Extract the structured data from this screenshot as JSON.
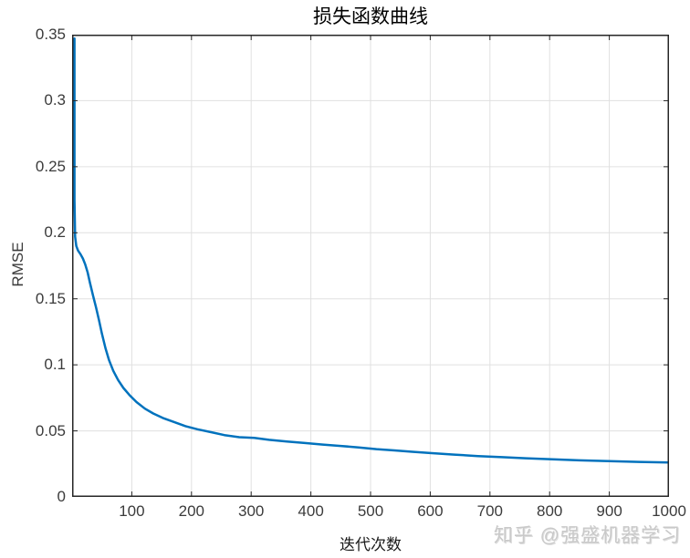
{
  "page": {
    "background": "#ffffff"
  },
  "watermark": {
    "text": "知乎 @强盛机器学习",
    "color": "#c9c9c9"
  },
  "chart_data": {
    "type": "line",
    "title": "损失函数曲线",
    "xlabel": "迭代次数",
    "ylabel": "RMSE",
    "xlim": [
      0,
      1000
    ],
    "ylim": [
      0,
      0.35
    ],
    "xticks": [
      100,
      200,
      300,
      400,
      500,
      600,
      700,
      800,
      900,
      1000
    ],
    "xtick_labels": [
      "100",
      "200",
      "300",
      "400",
      "500",
      "600",
      "700",
      "800",
      "900",
      "1000"
    ],
    "yticks": [
      0,
      0.05,
      0.1,
      0.15,
      0.2,
      0.25,
      0.3,
      0.35
    ],
    "ytick_labels": [
      "0",
      "0.05",
      "0.1",
      "0.15",
      "0.2",
      "0.25",
      "0.3",
      "0.35"
    ],
    "grid": true,
    "grid_color": "#e0e0e0",
    "axis_color": "#262626",
    "line_color": "#0072BD",
    "line_width": 2.5,
    "legend": "none",
    "series": [
      {
        "name": "RMSE",
        "points": [
          [
            4,
            0.347
          ],
          [
            4,
            0.28
          ],
          [
            4,
            0.225
          ],
          [
            5,
            0.197
          ],
          [
            7,
            0.19
          ],
          [
            10,
            0.1865
          ],
          [
            14,
            0.1838
          ],
          [
            18,
            0.1805
          ],
          [
            22,
            0.176
          ],
          [
            26,
            0.17
          ],
          [
            30,
            0.162
          ],
          [
            35,
            0.1525
          ],
          [
            40,
            0.1435
          ],
          [
            45,
            0.134
          ],
          [
            50,
            0.1235
          ],
          [
            56,
            0.1125
          ],
          [
            62,
            0.1035
          ],
          [
            69,
            0.0955
          ],
          [
            77,
            0.0885
          ],
          [
            86,
            0.0825
          ],
          [
            96,
            0.0772
          ],
          [
            108,
            0.0718
          ],
          [
            122,
            0.0668
          ],
          [
            136,
            0.0632
          ],
          [
            152,
            0.0598
          ],
          [
            170,
            0.0568
          ],
          [
            190,
            0.0536
          ],
          [
            210,
            0.0512
          ],
          [
            232,
            0.0491
          ],
          [
            255,
            0.0468
          ],
          [
            280,
            0.0452
          ],
          [
            305,
            0.0447
          ],
          [
            330,
            0.0432
          ],
          [
            360,
            0.0419
          ],
          [
            390,
            0.0408
          ],
          [
            420,
            0.0396
          ],
          [
            450,
            0.0386
          ],
          [
            480,
            0.0375
          ],
          [
            510,
            0.0362
          ],
          [
            540,
            0.0352
          ],
          [
            570,
            0.0342
          ],
          [
            600,
            0.0332
          ],
          [
            640,
            0.032
          ],
          [
            680,
            0.0309
          ],
          [
            720,
            0.0301
          ],
          [
            760,
            0.0293
          ],
          [
            800,
            0.0286
          ],
          [
            850,
            0.0277
          ],
          [
            900,
            0.0271
          ],
          [
            950,
            0.0265
          ],
          [
            1000,
            0.026
          ]
        ]
      }
    ]
  }
}
